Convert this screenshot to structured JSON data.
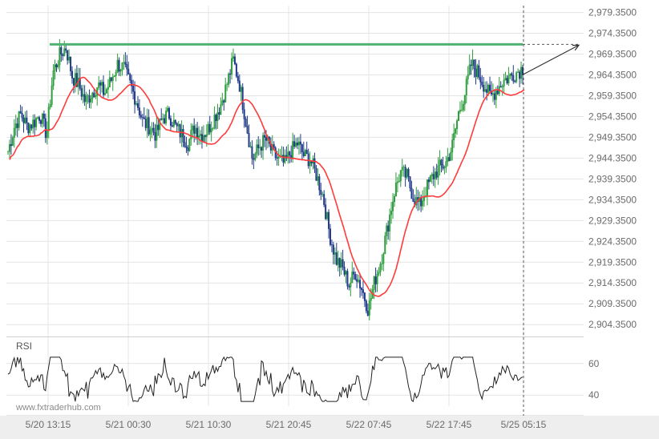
{
  "chart_data": {
    "type": "line",
    "instrument_type": "candlestick",
    "y_ticks": [
      "2,979.3500",
      "2,974.3500",
      "2,969.3500",
      "2,964.3500",
      "2,959.3500",
      "2,954.3500",
      "2,949.3500",
      "2,944.3500",
      "2,939.3500",
      "2,934.3500",
      "2,929.3500",
      "2,924.3500",
      "2,919.3500",
      "2,914.3500",
      "2,909.3500",
      "2,904.3500"
    ],
    "ylim": [
      2901.5,
      2981.0
    ],
    "x_ticks": [
      "5/20 13:15",
      "5/21 00:30",
      "5/21 10:30",
      "5/21 20:45",
      "5/22 07:45",
      "5/22 17:45",
      "5/25 05:15"
    ],
    "resistance_level": 2971.7,
    "projection_target": 2971.5,
    "price_series_anchors": [
      [
        0,
        2946
      ],
      [
        5,
        2952
      ],
      [
        10,
        2955
      ],
      [
        15,
        2952
      ],
      [
        20,
        2953
      ],
      [
        25,
        2955
      ],
      [
        30,
        2950
      ],
      [
        35,
        2965
      ],
      [
        40,
        2969
      ],
      [
        45,
        2971
      ],
      [
        50,
        2964
      ],
      [
        55,
        2962
      ],
      [
        60,
        2958
      ],
      [
        65,
        2960
      ],
      [
        70,
        2962
      ],
      [
        75,
        2960
      ],
      [
        80,
        2963
      ],
      [
        85,
        2967
      ],
      [
        90,
        2966
      ],
      [
        95,
        2962
      ],
      [
        100,
        2958
      ],
      [
        105,
        2953
      ],
      [
        110,
        2952
      ],
      [
        115,
        2950
      ],
      [
        120,
        2954
      ],
      [
        125,
        2955
      ],
      [
        130,
        2952
      ],
      [
        135,
        2950
      ],
      [
        140,
        2948
      ],
      [
        145,
        2952
      ],
      [
        150,
        2950
      ],
      [
        155,
        2951
      ],
      [
        160,
        2954
      ],
      [
        165,
        2957
      ],
      [
        170,
        2962
      ],
      [
        175,
        2968
      ],
      [
        180,
        2962
      ],
      [
        185,
        2953
      ],
      [
        190,
        2944
      ],
      [
        195,
        2947
      ],
      [
        200,
        2949
      ],
      [
        205,
        2946
      ],
      [
        210,
        2944
      ],
      [
        215,
        2943
      ],
      [
        220,
        2946
      ],
      [
        225,
        2948
      ],
      [
        230,
        2945
      ],
      [
        235,
        2944
      ],
      [
        240,
        2940
      ],
      [
        245,
        2935
      ],
      [
        250,
        2926
      ],
      [
        255,
        2920
      ],
      [
        260,
        2918
      ],
      [
        265,
        2914
      ],
      [
        270,
        2917
      ],
      [
        275,
        2913
      ],
      [
        280,
        2908
      ],
      [
        285,
        2915
      ],
      [
        290,
        2920
      ],
      [
        295,
        2928
      ],
      [
        300,
        2936
      ],
      [
        305,
        2941
      ],
      [
        310,
        2940
      ],
      [
        315,
        2935
      ],
      [
        320,
        2933
      ],
      [
        325,
        2937
      ],
      [
        330,
        2940
      ],
      [
        335,
        2942
      ],
      [
        340,
        2943
      ],
      [
        345,
        2947
      ],
      [
        350,
        2955
      ],
      [
        355,
        2960
      ],
      [
        360,
        2967
      ],
      [
        365,
        2965
      ],
      [
        370,
        2962
      ],
      [
        375,
        2959
      ],
      [
        380,
        2961
      ],
      [
        385,
        2963
      ],
      [
        390,
        2964
      ],
      [
        395,
        2965
      ],
      [
        400,
        2966
      ]
    ],
    "ma_color": "#ff3b3b",
    "bull_color": "#2e9e3e",
    "bear_color": "#1f3a8a",
    "resistance_color": "#4fb272",
    "rsi": {
      "title": "RSI",
      "y_ticks": [
        "60",
        "40"
      ],
      "ylim": [
        33,
        67
      ]
    },
    "watermark": "www.fxtraderhub.com",
    "grid": true
  }
}
